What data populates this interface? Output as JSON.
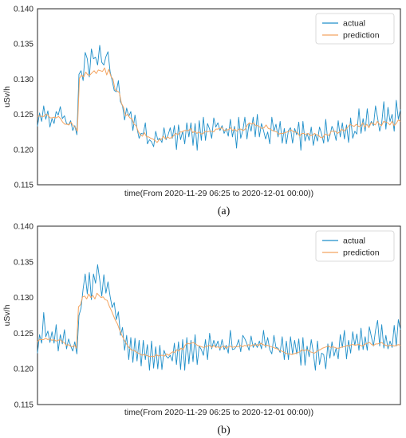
{
  "chart_data": [
    {
      "type": "line",
      "caption": "(a)",
      "xlabel": "time(From 2020-11-29 06:25 to 2020-12-01 00:00))",
      "ylabel": "uSv/h",
      "ylim": [
        0.115,
        0.14
      ],
      "yticks": [
        "0.115",
        "0.120",
        "0.125",
        "0.130",
        "0.135",
        "0.140"
      ],
      "x_range": [
        "2020-11-29 06:25",
        "2020-12-01 00:00"
      ],
      "grid": false,
      "legend_position": "top-right",
      "series": [
        {
          "name": "actual",
          "color": "#1f8fc9",
          "values": [
            0.1233,
            0.1252,
            0.124,
            0.1262,
            0.1243,
            0.1255,
            0.1232,
            0.1244,
            0.1237,
            0.1254,
            0.1249,
            0.1261,
            0.1244,
            0.1248,
            0.1237,
            0.1235,
            0.1241,
            0.1227,
            0.1234,
            0.1221,
            0.1307,
            0.1312,
            0.1298,
            0.1338,
            0.1329,
            0.1303,
            0.1343,
            0.1329,
            0.1331,
            0.132,
            0.1348,
            0.1324,
            0.132,
            0.1332,
            0.1339,
            0.1311,
            0.1298,
            0.1284,
            0.1282,
            0.1298,
            0.1268,
            0.1262,
            0.1242,
            0.1259,
            0.1247,
            0.1254,
            0.1227,
            0.1249,
            0.123,
            0.1216,
            0.1223,
            0.1222,
            0.1238,
            0.1208,
            0.1214,
            0.1211,
            0.1204,
            0.1226,
            0.1214,
            0.1216,
            0.121,
            0.1231,
            0.1214,
            0.1221,
            0.1231,
            0.1216,
            0.1234,
            0.12,
            0.1235,
            0.1214,
            0.1226,
            0.1208,
            0.1238,
            0.1218,
            0.1238,
            0.1206,
            0.1237,
            0.1199,
            0.1241,
            0.1213,
            0.1246,
            0.1213,
            0.1237,
            0.1229,
            0.1216,
            0.1245,
            0.1232,
            0.1238,
            0.1227,
            0.1234,
            0.1223,
            0.123,
            0.1219,
            0.1243,
            0.1218,
            0.1233,
            0.1202,
            0.1246,
            0.1216,
            0.1227,
            0.1246,
            0.1215,
            0.1237,
            0.1226,
            0.1246,
            0.1218,
            0.125,
            0.1218,
            0.1237,
            0.1227,
            0.1215,
            0.1225,
            0.1208,
            0.1246,
            0.1226,
            0.1236,
            0.1218,
            0.124,
            0.1209,
            0.123,
            0.1208,
            0.1227,
            0.1231,
            0.1209,
            0.123,
            0.1221,
            0.1239,
            0.1199,
            0.124,
            0.1212,
            0.1223,
            0.1213,
            0.1232,
            0.1206,
            0.1222,
            0.1212,
            0.1232,
            0.1222,
            0.1209,
            0.1243,
            0.1211,
            0.122,
            0.1233,
            0.1226,
            0.1213,
            0.1241,
            0.1218,
            0.1238,
            0.1215,
            0.1235,
            0.121,
            0.1245,
            0.1216,
            0.1226,
            0.1222,
            0.1258,
            0.1223,
            0.1244,
            0.1226,
            0.1258,
            0.1233,
            0.124,
            0.1234,
            0.1262,
            0.1245,
            0.1226,
            0.1238,
            0.1268,
            0.1229,
            0.126,
            0.124,
            0.125,
            0.1226,
            0.127,
            0.1243,
            0.1257
          ]
        },
        {
          "name": "prediction",
          "color": "#f4a460",
          "values": [
            0.1247,
            0.1248,
            0.1247,
            0.1247,
            0.125,
            0.1249,
            0.1245,
            0.1245,
            0.1246,
            0.1245,
            0.1247,
            0.1244,
            0.1239,
            0.1236,
            0.1236,
            0.1235,
            0.1239,
            0.1234,
            0.1232,
            0.1226,
            0.1301,
            0.1306,
            0.1303,
            0.131,
            0.1306,
            0.1306,
            0.1309,
            0.1312,
            0.1308,
            0.1313,
            0.1312,
            0.1311,
            0.1316,
            0.1306,
            0.1314,
            0.1304,
            0.13,
            0.1285,
            0.1283,
            0.1281,
            0.1266,
            0.126,
            0.1248,
            0.125,
            0.1245,
            0.1244,
            0.1236,
            0.1234,
            0.1226,
            0.1221,
            0.1219,
            0.1224,
            0.1218,
            0.1218,
            0.1216,
            0.1215,
            0.1213,
            0.121,
            0.1214,
            0.1214,
            0.1219,
            0.1215,
            0.1218,
            0.1216,
            0.1217,
            0.122,
            0.1223,
            0.1221,
            0.1225,
            0.1225,
            0.1227,
            0.1227,
            0.1227,
            0.123,
            0.1224,
            0.1226,
            0.1223,
            0.1225,
            0.1222,
            0.1223,
            0.1226,
            0.1225,
            0.1226,
            0.1226,
            0.1225,
            0.1229,
            0.1229,
            0.123,
            0.1231,
            0.1227,
            0.1228,
            0.1228,
            0.1231,
            0.1227,
            0.1229,
            0.1226,
            0.1229,
            0.1229,
            0.1227,
            0.1229,
            0.1235,
            0.1238,
            0.1236,
            0.1238,
            0.1234,
            0.1234,
            0.1232,
            0.123,
            0.1231,
            0.1235,
            0.123,
            0.1229,
            0.1227,
            0.1226,
            0.1225,
            0.1222,
            0.1223,
            0.1223,
            0.1224,
            0.1225,
            0.1226,
            0.1228,
            0.1225,
            0.1225,
            0.1224,
            0.1219,
            0.1223,
            0.1223,
            0.1221,
            0.1223,
            0.122,
            0.122,
            0.1223,
            0.1221,
            0.122,
            0.1217,
            0.1217,
            0.1222,
            0.1221,
            0.122,
            0.1226,
            0.1226,
            0.1226,
            0.1223,
            0.1225,
            0.1229,
            0.1226,
            0.1229,
            0.1232,
            0.1236,
            0.1234,
            0.1233,
            0.1236,
            0.1233,
            0.1233,
            0.1238,
            0.1232,
            0.1236,
            0.1231,
            0.1238,
            0.1237,
            0.1235,
            0.124,
            0.1236,
            0.1234,
            0.124,
            0.1239,
            0.1238,
            0.1235,
            0.124,
            0.1234,
            0.1237,
            0.1242,
            0.124
          ]
        }
      ]
    },
    {
      "type": "line",
      "caption": "(b)",
      "xlabel": "time(From 2020-11-29 06:25 to 2020-12-01 00:00))",
      "ylabel": "uSv/h",
      "ylim": [
        0.115,
        0.14
      ],
      "yticks": [
        "0.115",
        "0.120",
        "0.125",
        "0.130",
        "0.135",
        "0.140"
      ],
      "x_range": [
        "2020-11-29 06:25",
        "2020-12-01 00:00"
      ],
      "grid": false,
      "legend_position": "top-right",
      "series": [
        {
          "name": "actual",
          "color": "#1f8fc9",
          "values": [
            0.1222,
            0.1248,
            0.1236,
            0.1279,
            0.1245,
            0.1253,
            0.1237,
            0.1252,
            0.1236,
            0.1262,
            0.1225,
            0.1248,
            0.1235,
            0.1255,
            0.1228,
            0.1242,
            0.1232,
            0.1225,
            0.1238,
            0.1221,
            0.1275,
            0.1285,
            0.1312,
            0.1333,
            0.1305,
            0.1335,
            0.1297,
            0.1333,
            0.132,
            0.1346,
            0.1325,
            0.1302,
            0.1332,
            0.1306,
            0.1322,
            0.1302,
            0.1286,
            0.1293,
            0.1269,
            0.128,
            0.1247,
            0.1258,
            0.1226,
            0.1247,
            0.1213,
            0.1244,
            0.1209,
            0.1243,
            0.1211,
            0.124,
            0.1204,
            0.124,
            0.1213,
            0.1234,
            0.1198,
            0.1239,
            0.1201,
            0.1231,
            0.12,
            0.1233,
            0.1199,
            0.1226,
            0.1218,
            0.1215,
            0.1219,
            0.1211,
            0.1236,
            0.1206,
            0.1238,
            0.1199,
            0.1241,
            0.1198,
            0.1244,
            0.1207,
            0.124,
            0.121,
            0.1248,
            0.1206,
            0.1232,
            0.1227,
            0.1219,
            0.1241,
            0.1213,
            0.125,
            0.1228,
            0.124,
            0.1231,
            0.1239,
            0.1226,
            0.1241,
            0.1227,
            0.1233,
            0.1222,
            0.1254,
            0.1227,
            0.1228,
            0.1232,
            0.1241,
            0.1224,
            0.1247,
            0.1242,
            0.1235,
            0.1226,
            0.1246,
            0.123,
            0.1236,
            0.123,
            0.1239,
            0.1228,
            0.1254,
            0.123,
            0.1244,
            0.1227,
            0.1221,
            0.1247,
            0.123,
            0.1229,
            0.1223,
            0.1245,
            0.1213,
            0.1239,
            0.1213,
            0.1245,
            0.1221,
            0.124,
            0.1221,
            0.1242,
            0.1205,
            0.1244,
            0.1205,
            0.1232,
            0.1217,
            0.1241,
            0.1223,
            0.1198,
            0.1239,
            0.1206,
            0.1222,
            0.122,
            0.12,
            0.1235,
            0.1215,
            0.1238,
            0.1218,
            0.1229,
            0.1214,
            0.1248,
            0.123,
            0.1254,
            0.1214,
            0.124,
            0.1222,
            0.1252,
            0.1233,
            0.1249,
            0.1226,
            0.1257,
            0.1227,
            0.1245,
            0.1226,
            0.1259,
            0.1245,
            0.1232,
            0.1254,
            0.1268,
            0.1232,
            0.1262,
            0.1229,
            0.1247,
            0.1228,
            0.1239,
            0.123,
            0.1261,
            0.1232,
            0.1269,
            0.1255
          ]
        },
        {
          "name": "prediction",
          "color": "#f4a460",
          "values": [
            0.1238,
            0.1241,
            0.1241,
            0.1241,
            0.1243,
            0.1241,
            0.1242,
            0.124,
            0.1241,
            0.1239,
            0.124,
            0.1241,
            0.1238,
            0.1237,
            0.1233,
            0.1234,
            0.1232,
            0.1231,
            0.1233,
            0.1229,
            0.1287,
            0.129,
            0.1301,
            0.1302,
            0.1298,
            0.1305,
            0.13,
            0.1303,
            0.1298,
            0.1306,
            0.1303,
            0.13,
            0.1301,
            0.1297,
            0.1296,
            0.1288,
            0.1282,
            0.1275,
            0.1268,
            0.1263,
            0.1255,
            0.1248,
            0.1242,
            0.1237,
            0.1232,
            0.1229,
            0.1226,
            0.1226,
            0.1224,
            0.1222,
            0.1221,
            0.1219,
            0.122,
            0.1219,
            0.1218,
            0.1217,
            0.1218,
            0.1217,
            0.122,
            0.1218,
            0.1219,
            0.1219,
            0.1218,
            0.1221,
            0.1219,
            0.1222,
            0.1224,
            0.1223,
            0.1227,
            0.1225,
            0.1229,
            0.1227,
            0.1233,
            0.1236,
            0.1235,
            0.1236,
            0.1237,
            0.1235,
            0.1233,
            0.1232,
            0.1231,
            0.123,
            0.1231,
            0.1232,
            0.1233,
            0.123,
            0.1233,
            0.123,
            0.1231,
            0.1229,
            0.1231,
            0.1232,
            0.1229,
            0.1231,
            0.1232,
            0.123,
            0.1231,
            0.1231,
            0.1231,
            0.1233,
            0.1231,
            0.1233,
            0.1232,
            0.1234,
            0.1232,
            0.1234,
            0.1233,
            0.1234,
            0.1233,
            0.1236,
            0.1234,
            0.1233,
            0.1233,
            0.1232,
            0.1231,
            0.123,
            0.1229,
            0.1228,
            0.1226,
            0.1225,
            0.1224,
            0.1222,
            0.1221,
            0.1221,
            0.122,
            0.1221,
            0.1222,
            0.1223,
            0.1224,
            0.1227,
            0.1225,
            0.1227,
            0.1226,
            0.1224,
            0.1223,
            0.1222,
            0.1224,
            0.1226,
            0.1227,
            0.1229,
            0.123,
            0.1231,
            0.1232,
            0.123,
            0.1231,
            0.123,
            0.1229,
            0.1229,
            0.123,
            0.1231,
            0.1231,
            0.1233,
            0.1232,
            0.1234,
            0.1234,
            0.1233,
            0.1234,
            0.1234,
            0.1232,
            0.1233,
            0.1235,
            0.1236,
            0.1237,
            0.1234,
            0.1233,
            0.1235,
            0.1235,
            0.1236,
            0.1237,
            0.1234,
            0.1233,
            0.1232,
            0.1233,
            0.1233,
            0.1232,
            0.1233,
            0.1234,
            0.1233
          ]
        }
      ]
    }
  ]
}
